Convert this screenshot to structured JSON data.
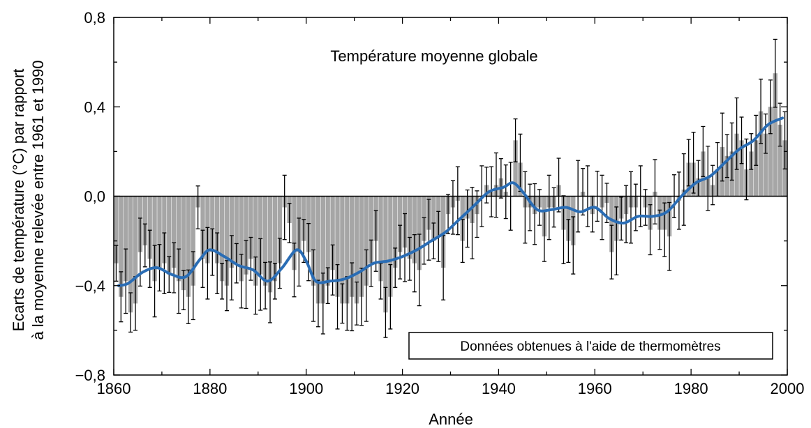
{
  "chart_data": {
    "type": "bar",
    "title": "Température moyenne globale",
    "xlabel": "Année",
    "ylabel_line1": "Ecarts de température (°C) par rapport",
    "ylabel_line2": "à la moyenne relevée entre 1961 et 1990",
    "annotation": "Données obtenues à l'aide de thermomètres",
    "xlim": [
      1860,
      2000
    ],
    "ylim": [
      -0.8,
      0.8
    ],
    "x_ticks": [
      1860,
      1880,
      1900,
      1920,
      1940,
      1960,
      1980,
      2000
    ],
    "x_tick_labels": [
      "1860",
      "1880",
      "1900",
      "1920",
      "1940",
      "1960",
      "1980",
      "2000"
    ],
    "y_ticks": [
      -0.8,
      -0.4,
      0.0,
      0.4,
      0.8
    ],
    "y_tick_labels": [
      "−0,8",
      "−0,4",
      "0,0",
      "0,4",
      "0,8"
    ],
    "grid": false,
    "colors": {
      "bars": "#a6a6a6",
      "smooth_line": "#2a6db5",
      "axis": "#000000",
      "error_bars": "#000000"
    },
    "series": [
      {
        "type": "bar",
        "years": [
          1861,
          1862,
          1863,
          1864,
          1865,
          1866,
          1867,
          1868,
          1869,
          1870,
          1871,
          1872,
          1873,
          1874,
          1875,
          1876,
          1877,
          1878,
          1879,
          1880,
          1881,
          1882,
          1883,
          1884,
          1885,
          1886,
          1887,
          1888,
          1889,
          1890,
          1891,
          1892,
          1893,
          1894,
          1895,
          1896,
          1897,
          1898,
          1899,
          1900,
          1901,
          1902,
          1903,
          1904,
          1905,
          1906,
          1907,
          1908,
          1909,
          1910,
          1911,
          1912,
          1913,
          1914,
          1915,
          1916,
          1917,
          1918,
          1919,
          1920,
          1921,
          1922,
          1923,
          1924,
          1925,
          1926,
          1927,
          1928,
          1929,
          1930,
          1931,
          1932,
          1933,
          1934,
          1935,
          1936,
          1937,
          1938,
          1939,
          1940,
          1941,
          1942,
          1943,
          1944,
          1945,
          1946,
          1947,
          1948,
          1949,
          1950,
          1951,
          1952,
          1953,
          1954,
          1955,
          1956,
          1957,
          1958,
          1959,
          1960,
          1961,
          1962,
          1963,
          1964,
          1965,
          1966,
          1967,
          1968,
          1969,
          1970,
          1971,
          1972,
          1973,
          1974,
          1975,
          1976,
          1977,
          1978,
          1979,
          1980,
          1981,
          1982,
          1983,
          1984,
          1985,
          1986,
          1987,
          1988,
          1989,
          1990,
          1991,
          1992,
          1993,
          1994,
          1995,
          1996,
          1997,
          1998,
          1999,
          2000
        ],
        "values": [
          -0.3,
          -0.45,
          -0.38,
          -0.52,
          -0.48,
          -0.25,
          -0.22,
          -0.28,
          -0.38,
          -0.32,
          -0.3,
          -0.35,
          -0.32,
          -0.38,
          -0.42,
          -0.45,
          -0.4,
          -0.05,
          -0.28,
          -0.3,
          -0.25,
          -0.3,
          -0.38,
          -0.4,
          -0.32,
          -0.3,
          -0.38,
          -0.35,
          -0.28,
          -0.4,
          -0.35,
          -0.4,
          -0.43,
          -0.38,
          -0.3,
          -0.05,
          -0.12,
          -0.33,
          -0.25,
          -0.2,
          -0.25,
          -0.4,
          -0.48,
          -0.48,
          -0.4,
          -0.33,
          -0.45,
          -0.48,
          -0.48,
          -0.45,
          -0.48,
          -0.45,
          -0.4,
          -0.3,
          -0.2,
          -0.38,
          -0.52,
          -0.45,
          -0.32,
          -0.25,
          -0.23,
          -0.28,
          -0.3,
          -0.33,
          -0.2,
          -0.15,
          -0.2,
          -0.18,
          -0.32,
          -0.08,
          -0.05,
          -0.02,
          -0.2,
          -0.1,
          -0.12,
          -0.08,
          0.0,
          0.05,
          0.02,
          0.05,
          0.08,
          0.02,
          0.0,
          0.25,
          0.15,
          -0.05,
          -0.05,
          -0.08,
          -0.05,
          -0.18,
          -0.05,
          -0.05,
          0.05,
          -0.15,
          -0.2,
          -0.22,
          0.0,
          0.02,
          0.0,
          -0.08,
          0.0,
          -0.05,
          -0.03,
          -0.25,
          -0.2,
          -0.1,
          -0.08,
          -0.05,
          -0.05,
          0.0,
          -0.05,
          -0.15,
          0.02,
          -0.15,
          -0.15,
          -0.18,
          0.0,
          -0.02,
          0.03,
          0.15,
          0.15,
          0.08,
          0.2,
          0.08,
          0.05,
          0.12,
          0.22,
          0.18,
          0.2,
          0.28,
          0.25,
          0.12,
          0.2,
          0.25,
          0.38,
          0.28,
          0.4,
          0.55,
          0.32,
          0.25
        ]
      },
      {
        "type": "line",
        "name": "",
        "years": [
          1861,
          1863,
          1866,
          1869,
          1872,
          1875,
          1878,
          1880,
          1883,
          1886,
          1889,
          1892,
          1895,
          1898,
          1900,
          1902,
          1905,
          1908,
          1911,
          1914,
          1917,
          1920,
          1923,
          1926,
          1929,
          1932,
          1935,
          1938,
          1941,
          1943,
          1945,
          1948,
          1951,
          1954,
          1957,
          1960,
          1963,
          1966,
          1969,
          1972,
          1975,
          1978,
          1981,
          1984,
          1987,
          1990,
          1993,
          1996,
          1999
        ],
        "values": [
          -0.4,
          -0.39,
          -0.34,
          -0.32,
          -0.35,
          -0.36,
          -0.28,
          -0.24,
          -0.27,
          -0.31,
          -0.33,
          -0.38,
          -0.32,
          -0.24,
          -0.29,
          -0.38,
          -0.38,
          -0.37,
          -0.34,
          -0.3,
          -0.29,
          -0.27,
          -0.24,
          -0.2,
          -0.16,
          -0.1,
          -0.04,
          0.02,
          0.04,
          0.06,
          0.02,
          -0.06,
          -0.06,
          -0.05,
          -0.07,
          -0.05,
          -0.1,
          -0.12,
          -0.09,
          -0.09,
          -0.07,
          0.0,
          0.06,
          0.09,
          0.15,
          0.21,
          0.25,
          0.32,
          0.35
        ]
      }
    ]
  }
}
